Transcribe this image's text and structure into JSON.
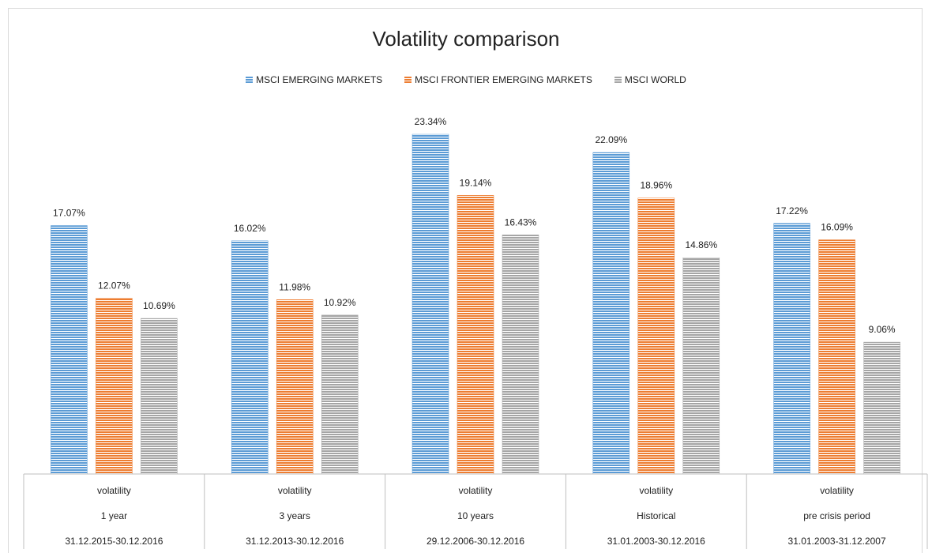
{
  "chart_data": {
    "type": "bar",
    "title": "Volatility comparison",
    "xlabel": "",
    "ylabel": "",
    "ylim": [
      0,
      23.34
    ],
    "grid": false,
    "legend_position": "top",
    "value_suffix": "%",
    "categories": [
      {
        "row1": "volatility",
        "row2": "1 year",
        "row3": "31.12.2015-30.12.2016"
      },
      {
        "row1": "volatility",
        "row2": "3 years",
        "row3": "31.12.2013-30.12.2016"
      },
      {
        "row1": "volatility",
        "row2": "10 years",
        "row3": "29.12.2006-30.12.2016"
      },
      {
        "row1": "volatility",
        "row2": "Historical",
        "row3": "31.01.2003-30.12.2016"
      },
      {
        "row1": "volatility",
        "row2": "pre crisis period",
        "row3": "31.01.2003-31.12.2007"
      }
    ],
    "series": [
      {
        "name": "MSCI EMERGING MARKETS",
        "color": "#5B9BD5",
        "values": [
          17.07,
          16.02,
          23.34,
          22.09,
          17.22
        ]
      },
      {
        "name": "MSCI FRONTIER EMERGING MARKETS",
        "color": "#ED7D31",
        "values": [
          12.07,
          11.98,
          19.14,
          18.96,
          16.09
        ]
      },
      {
        "name": "MSCI WORLD",
        "color": "#A5A5A5",
        "values": [
          10.69,
          10.92,
          16.43,
          14.86,
          9.06
        ]
      }
    ]
  }
}
